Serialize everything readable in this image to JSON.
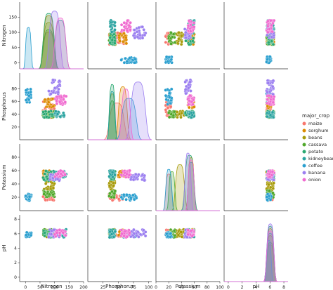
{
  "chart_data": {
    "type": "scatter",
    "subtype": "pairplot",
    "variables": [
      "Nitrogen",
      "Phosphorus",
      "Potassium",
      "pH"
    ],
    "axis_labels": {
      "x": [
        "Nitrogen",
        "Phosphorus",
        "Potassium",
        "pH"
      ],
      "y": [
        "Nitrogen",
        "Phosphorus",
        "Potassium",
        "pH"
      ]
    },
    "ranges": {
      "Nitrogen": [
        -20,
        200
      ],
      "Phosphorus": [
        0,
        105
      ],
      "Potassium": [
        0,
        100
      ],
      "pH": [
        -0.6,
        8.6
      ]
    },
    "ticks": {
      "Nitrogen": [
        0,
        50,
        100,
        150,
        200
      ],
      "Phosphorus": [
        25,
        50,
        75,
        100
      ],
      "Potassium": [
        0,
        20,
        40,
        60,
        80,
        100
      ],
      "pH": [
        0,
        2,
        4,
        6,
        8
      ]
    },
    "tick_labels": {
      "Nitrogen": [
        "0",
        "50",
        "100",
        "150",
        "200"
      ],
      "Phosphorus": [
        "25",
        "50",
        "75",
        "100"
      ],
      "Potassium": [
        "0",
        "20",
        "40",
        "60",
        "80",
        "100"
      ],
      "pH": [
        "0",
        "2",
        "4",
        "6",
        "8"
      ]
    },
    "y_ticks": {
      "Nitrogen": [
        0,
        50,
        100,
        150
      ],
      "Phosphorus": [
        20,
        40,
        60,
        80
      ],
      "Potassium": [
        20,
        40,
        60,
        80
      ],
      "pH": [
        0,
        2,
        4,
        6,
        8
      ]
    },
    "y_tick_labels": {
      "Nitrogen": [
        "0",
        "50",
        "100",
        "150"
      ],
      "Phosphorus": [
        "20",
        "40",
        "60",
        "80"
      ],
      "Potassium": [
        "20",
        "40",
        "60",
        "80"
      ],
      "pH": [
        "0",
        "2",
        "4",
        "6",
        "8"
      ]
    },
    "legend": {
      "title": "major_crop",
      "placement": "right",
      "entries": [
        {
          "name": "maize",
          "color": "#f8766d"
        },
        {
          "name": "sorghum",
          "color": "#dc8a00"
        },
        {
          "name": "beans",
          "color": "#a89b0a"
        },
        {
          "name": "cassava",
          "color": "#4fa82a"
        },
        {
          "name": "potato",
          "color": "#2aa871"
        },
        {
          "name": "kidneybeans",
          "color": "#2aa3a0"
        },
        {
          "name": "coffee",
          "color": "#2a9fcf"
        },
        {
          "name": "banana",
          "color": "#9b7ff0"
        },
        {
          "name": "onion",
          "color": "#f06bd0"
        }
      ]
    },
    "series": [
      {
        "name": "maize",
        "color": "#f8766d",
        "Nitrogen": [
          60,
          100
        ],
        "Phosphorus": [
          35,
          60
        ],
        "Potassium": [
          15,
          25
        ],
        "pH": [
          5.5,
          6.6
        ]
      },
      {
        "name": "sorghum",
        "color": "#dc8a00",
        "Nitrogen": [
          60,
          100
        ],
        "Phosphorus": [
          50,
          65
        ],
        "Potassium": [
          50,
          60
        ],
        "pH": [
          5.5,
          6.6
        ]
      },
      {
        "name": "beans",
        "color": "#a89b0a",
        "Nitrogen": [
          60,
          100
        ],
        "Phosphorus": [
          35,
          45
        ],
        "Potassium": [
          30,
          45
        ],
        "pH": [
          5.5,
          6.6
        ]
      },
      {
        "name": "cassava",
        "color": "#4fa82a",
        "Nitrogen": [
          60,
          100
        ],
        "Phosphorus": [
          35,
          45
        ],
        "Potassium": [
          20,
          30
        ],
        "pH": [
          5.5,
          6.6
        ]
      },
      {
        "name": "potato",
        "color": "#2aa871",
        "Nitrogen": [
          60,
          100
        ],
        "Phosphorus": [
          35,
          45
        ],
        "Potassium": [
          45,
          60
        ],
        "pH": [
          5.5,
          6.6
        ]
      },
      {
        "name": "kidneybeans",
        "color": "#2aa3a0",
        "Nitrogen": [
          100,
          140
        ],
        "Phosphorus": [
          35,
          45
        ],
        "Potassium": [
          50,
          60
        ],
        "pH": [
          5.5,
          6.6
        ]
      },
      {
        "name": "coffee",
        "color": "#2a9fcf",
        "Nitrogen": [
          0,
          20
        ],
        "Phosphorus": [
          55,
          80
        ],
        "Potassium": [
          15,
          25
        ],
        "pH": [
          5.5,
          6.2
        ]
      },
      {
        "name": "banana",
        "color": "#9b7ff0",
        "Nitrogen": [
          80,
          120
        ],
        "Phosphorus": [
          70,
          95
        ],
        "Potassium": [
          45,
          55
        ],
        "pH": [
          5.5,
          6.6
        ]
      },
      {
        "name": "onion",
        "color": "#f06bd0",
        "Nitrogen": [
          100,
          140
        ],
        "Phosphorus": [
          55,
          70
        ],
        "Potassium": [
          50,
          60
        ],
        "pH": [
          5.5,
          6.6
        ]
      }
    ],
    "diag_type": "kde",
    "grid": false
  }
}
